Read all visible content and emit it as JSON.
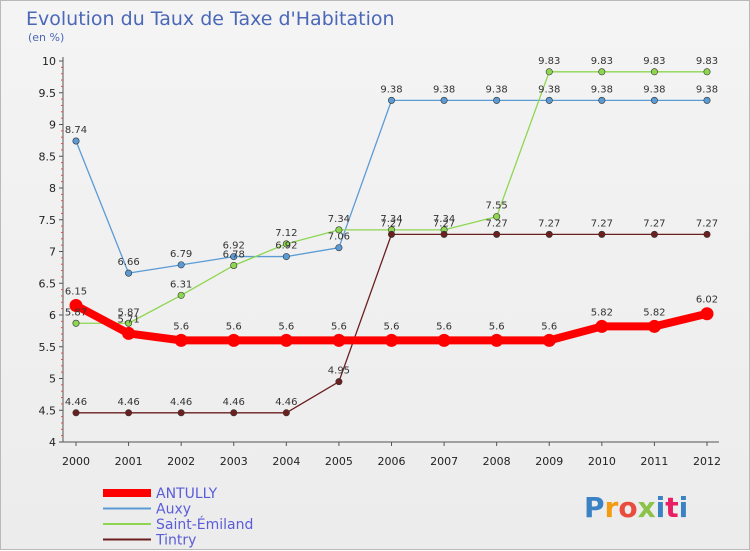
{
  "chart_data": {
    "type": "line",
    "title": "Evolution du Taux de Taxe d'Habitation",
    "subtitle": "(en %)",
    "ylim": [
      4,
      10
    ],
    "yticks": [
      "4",
      "4.5",
      "5",
      "5.5",
      "6",
      "6.5",
      "7",
      "7.5",
      "8",
      "8.5",
      "9",
      "9.5",
      "10"
    ],
    "categories": [
      "2000",
      "2001",
      "2002",
      "2003",
      "2004",
      "2005",
      "2006",
      "2007",
      "2008",
      "2009",
      "2010",
      "2011",
      "2012"
    ],
    "grid": false,
    "legend_position": "bottom-left",
    "series": [
      {
        "name": "ANTULLY",
        "color": "#ff0000",
        "values": [
          6.15,
          5.71,
          5.6,
          5.6,
          5.6,
          5.6,
          5.6,
          5.6,
          5.6,
          5.6,
          5.82,
          5.82,
          6.02
        ]
      },
      {
        "name": "Auxy",
        "color": "#5b9bd5",
        "values": [
          8.74,
          6.66,
          6.79,
          6.92,
          6.92,
          7.06,
          9.38,
          9.38,
          9.38,
          9.38,
          9.38,
          9.38,
          9.38
        ]
      },
      {
        "name": "Saint-Émiland",
        "color": "#8ed651",
        "values": [
          5.87,
          5.87,
          6.31,
          6.78,
          7.12,
          7.34,
          7.34,
          7.34,
          7.55,
          9.83,
          9.83,
          9.83,
          9.83
        ]
      },
      {
        "name": "Tintry",
        "color": "#6b1f1f",
        "values": [
          4.46,
          4.46,
          4.46,
          4.46,
          4.46,
          4.95,
          7.27,
          7.27,
          7.27,
          7.27,
          7.27,
          7.27,
          7.27
        ]
      }
    ]
  },
  "logo": {
    "text": "Proxiti",
    "colors": [
      "#3b82c4",
      "#f39c12",
      "#e74c3c",
      "#8bc34a",
      "#3b82c4",
      "#e91e63",
      "#3b82c4"
    ]
  }
}
